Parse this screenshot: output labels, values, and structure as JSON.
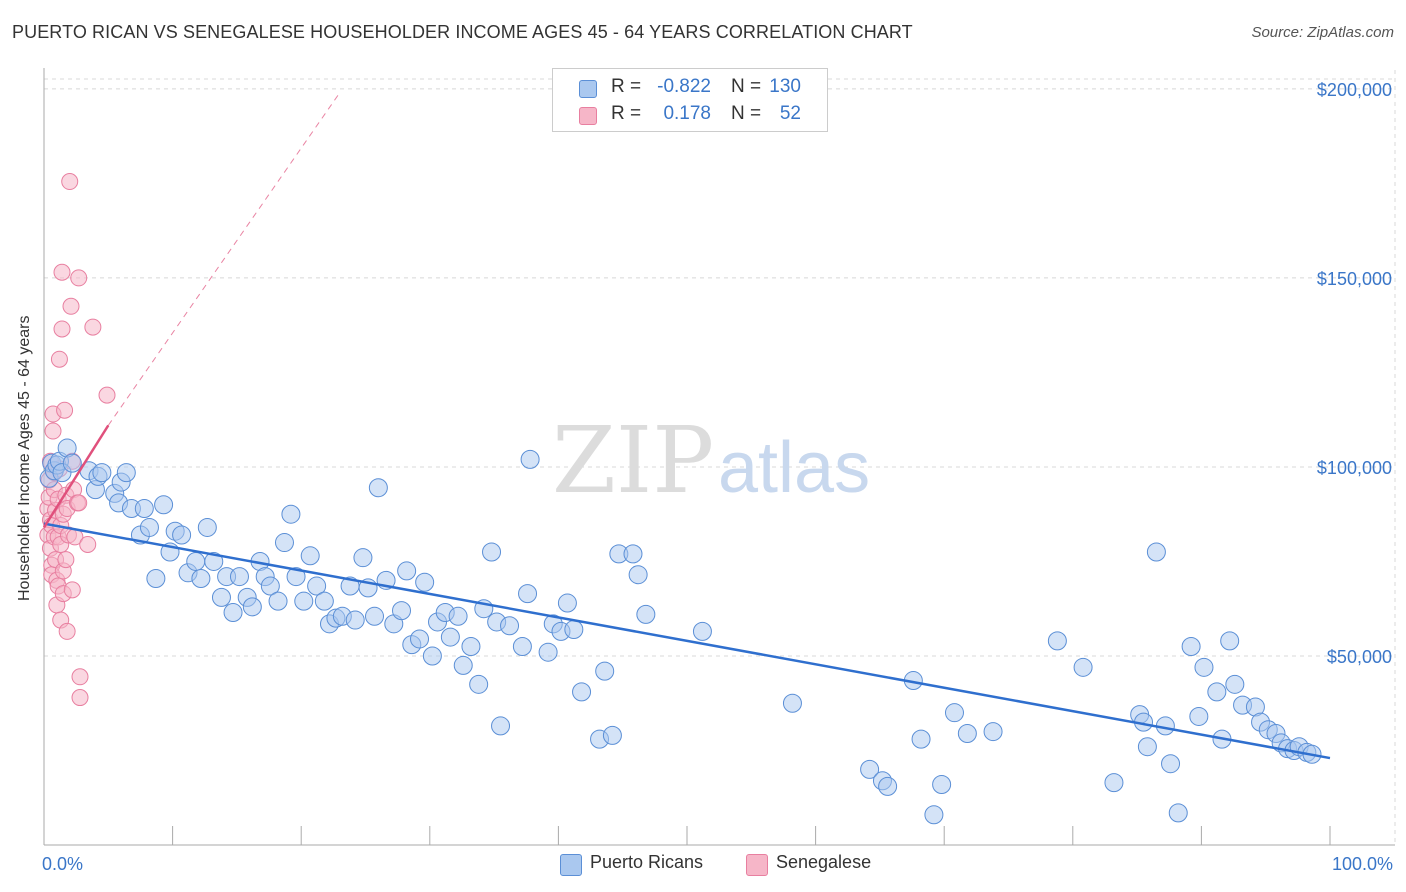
{
  "header": {
    "title": "PUERTO RICAN VS SENEGALESE HOUSEHOLDER INCOME AGES 45 - 64 YEARS CORRELATION CHART",
    "source": "Source: ZipAtlas.com"
  },
  "legend": {
    "rows": [
      {
        "r_label": "R =",
        "r_value": "-0.822",
        "n_label": "N =",
        "n_value": "130"
      },
      {
        "r_label": "R =",
        "r_value": "0.178",
        "n_label": "N =",
        "n_value": "52"
      }
    ]
  },
  "bottom_legend": [
    "Puerto Ricans",
    "Senegalese"
  ],
  "colors": {
    "blue_fill": "#aac8ef",
    "blue_stroke": "#5b8fd6",
    "blue_line": "#2f6fce",
    "pink_fill": "#f6b6c8",
    "pink_stroke": "#e87fa0",
    "pink_line": "#e0507c",
    "axis_label": "#3a76c8",
    "grid": "#d8d8d8"
  },
  "chart_data": {
    "type": "scatter",
    "title": "PUERTO RICAN VS SENEGALESE HOUSEHOLDER INCOME AGES 45 - 64 YEARS CORRELATION CHART",
    "xlabel": "",
    "ylabel": "Householder Income Ages 45 - 64 years",
    "xlim": [
      0,
      100
    ],
    "ylim": [
      0,
      205000
    ],
    "x_tick_labels": [
      "0.0%",
      "100.0%"
    ],
    "y_ticks": [
      50000,
      100000,
      150000,
      200000
    ],
    "y_tick_labels": [
      "$50,000",
      "$100,000",
      "$150,000",
      "$200,000"
    ],
    "grid": true,
    "legend_position": "top-center",
    "watermark": "ZIPatlas",
    "series": [
      {
        "name": "Puerto Ricans",
        "r": -0.822,
        "n": 130,
        "trend": {
          "x": [
            0,
            100
          ],
          "y": [
            85000,
            23000
          ]
        },
        "points": [
          [
            0.4,
            97000
          ],
          [
            0.6,
            101000
          ],
          [
            0.8,
            99000
          ],
          [
            1.0,
            100500
          ],
          [
            1.2,
            101500
          ],
          [
            1.4,
            98500
          ],
          [
            1.8,
            105000
          ],
          [
            2.2,
            101000
          ],
          [
            3.5,
            99000
          ],
          [
            4.0,
            94000
          ],
          [
            4.2,
            97500
          ],
          [
            4.5,
            98500
          ],
          [
            5.5,
            93000
          ],
          [
            5.8,
            90500
          ],
          [
            6.0,
            96000
          ],
          [
            6.4,
            98500
          ],
          [
            6.8,
            89000
          ],
          [
            7.5,
            82000
          ],
          [
            7.8,
            89000
          ],
          [
            8.2,
            84000
          ],
          [
            8.7,
            70500
          ],
          [
            9.3,
            90000
          ],
          [
            9.8,
            77500
          ],
          [
            10.2,
            83000
          ],
          [
            10.7,
            82000
          ],
          [
            11.2,
            72000
          ],
          [
            11.8,
            75000
          ],
          [
            12.2,
            70500
          ],
          [
            12.7,
            84000
          ],
          [
            13.2,
            75000
          ],
          [
            13.8,
            65500
          ],
          [
            14.2,
            71000
          ],
          [
            14.7,
            61500
          ],
          [
            15.2,
            71000
          ],
          [
            15.8,
            65500
          ],
          [
            16.2,
            63000
          ],
          [
            16.8,
            75000
          ],
          [
            17.2,
            71000
          ],
          [
            17.6,
            68500
          ],
          [
            18.2,
            64500
          ],
          [
            18.7,
            80000
          ],
          [
            19.2,
            87500
          ],
          [
            19.6,
            71000
          ],
          [
            20.2,
            64500
          ],
          [
            20.7,
            76500
          ],
          [
            21.2,
            68500
          ],
          [
            21.8,
            64500
          ],
          [
            22.2,
            58500
          ],
          [
            22.7,
            60000
          ],
          [
            23.2,
            60500
          ],
          [
            23.8,
            68500
          ],
          [
            24.2,
            59500
          ],
          [
            24.8,
            76000
          ],
          [
            25.2,
            68000
          ],
          [
            25.7,
            60500
          ],
          [
            26.0,
            94500
          ],
          [
            26.6,
            70000
          ],
          [
            27.2,
            58500
          ],
          [
            27.8,
            62000
          ],
          [
            28.2,
            72500
          ],
          [
            28.6,
            53000
          ],
          [
            29.2,
            54500
          ],
          [
            29.6,
            69500
          ],
          [
            30.2,
            50000
          ],
          [
            30.6,
            59000
          ],
          [
            31.2,
            61500
          ],
          [
            31.6,
            55000
          ],
          [
            32.2,
            60500
          ],
          [
            32.6,
            47500
          ],
          [
            33.2,
            52500
          ],
          [
            33.8,
            42500
          ],
          [
            34.2,
            62500
          ],
          [
            34.8,
            77500
          ],
          [
            35.2,
            59000
          ],
          [
            35.5,
            31500
          ],
          [
            36.2,
            58000
          ],
          [
            37.2,
            52500
          ],
          [
            37.6,
            66500
          ],
          [
            37.8,
            102000
          ],
          [
            39.2,
            51000
          ],
          [
            39.6,
            58500
          ],
          [
            40.2,
            56500
          ],
          [
            40.7,
            64000
          ],
          [
            41.2,
            57000
          ],
          [
            41.8,
            40500
          ],
          [
            43.2,
            28000
          ],
          [
            43.6,
            46000
          ],
          [
            44.2,
            29000
          ],
          [
            44.7,
            77000
          ],
          [
            45.8,
            77000
          ],
          [
            46.2,
            71500
          ],
          [
            46.8,
            61000
          ],
          [
            51.2,
            56500
          ],
          [
            58.2,
            37500
          ],
          [
            64.2,
            20000
          ],
          [
            65.2,
            17000
          ],
          [
            65.6,
            15500
          ],
          [
            67.6,
            43500
          ],
          [
            68.2,
            28000
          ],
          [
            69.2,
            8000
          ],
          [
            69.8,
            16000
          ],
          [
            70.8,
            35000
          ],
          [
            71.8,
            29500
          ],
          [
            73.8,
            30000
          ],
          [
            78.8,
            54000
          ],
          [
            80.8,
            47000
          ],
          [
            83.2,
            16500
          ],
          [
            85.2,
            34500
          ],
          [
            85.5,
            32500
          ],
          [
            85.8,
            26000
          ],
          [
            86.5,
            77500
          ],
          [
            87.2,
            31500
          ],
          [
            87.6,
            21500
          ],
          [
            88.2,
            8500
          ],
          [
            89.2,
            52500
          ],
          [
            89.8,
            34000
          ],
          [
            90.2,
            47000
          ],
          [
            91.2,
            40500
          ],
          [
            91.6,
            28000
          ],
          [
            92.2,
            54000
          ],
          [
            92.6,
            42500
          ],
          [
            93.2,
            37000
          ],
          [
            94.2,
            36500
          ],
          [
            94.6,
            32500
          ],
          [
            95.2,
            30500
          ],
          [
            95.8,
            29500
          ],
          [
            96.2,
            27000
          ],
          [
            96.7,
            25500
          ],
          [
            97.2,
            25000
          ],
          [
            97.6,
            26000
          ],
          [
            98.2,
            24500
          ],
          [
            98.6,
            24000
          ]
        ]
      },
      {
        "name": "Senegalese",
        "r": 0.178,
        "n": 52,
        "trend": {
          "x": [
            0,
            5
          ],
          "y": [
            84000,
            111000
          ]
        },
        "trend_extended": {
          "x": [
            5,
            23
          ],
          "y": [
            111000,
            199000
          ]
        },
        "points": [
          [
            0.3,
            82000
          ],
          [
            0.3,
            89000
          ],
          [
            0.4,
            92000
          ],
          [
            0.4,
            96500
          ],
          [
            0.5,
            101500
          ],
          [
            0.5,
            86000
          ],
          [
            0.5,
            78500
          ],
          [
            0.6,
            74000
          ],
          [
            0.6,
            71500
          ],
          [
            0.6,
            84500
          ],
          [
            0.7,
            109500
          ],
          [
            0.7,
            114000
          ],
          [
            0.8,
            98500
          ],
          [
            0.8,
            81500
          ],
          [
            0.8,
            94000
          ],
          [
            0.9,
            88500
          ],
          [
            0.9,
            75500
          ],
          [
            1.0,
            70000
          ],
          [
            1.0,
            63500
          ],
          [
            1.1,
            81500
          ],
          [
            1.1,
            91500
          ],
          [
            1.1,
            68500
          ],
          [
            1.2,
            128500
          ],
          [
            1.2,
            99500
          ],
          [
            1.3,
            84500
          ],
          [
            1.3,
            79500
          ],
          [
            1.3,
            59500
          ],
          [
            1.4,
            136500
          ],
          [
            1.4,
            151500
          ],
          [
            1.5,
            72500
          ],
          [
            1.5,
            66500
          ],
          [
            1.5,
            87500
          ],
          [
            1.6,
            115000
          ],
          [
            1.7,
            92500
          ],
          [
            1.7,
            75500
          ],
          [
            1.8,
            89000
          ],
          [
            1.8,
            56500
          ],
          [
            1.9,
            82000
          ],
          [
            2.0,
            175500
          ],
          [
            2.1,
            142500
          ],
          [
            2.2,
            101500
          ],
          [
            2.2,
            67500
          ],
          [
            2.3,
            94000
          ],
          [
            2.4,
            81500
          ],
          [
            2.6,
            90500
          ],
          [
            2.7,
            150000
          ],
          [
            2.7,
            90500
          ],
          [
            2.8,
            44500
          ],
          [
            2.8,
            39000
          ],
          [
            3.4,
            79500
          ],
          [
            3.8,
            137000
          ],
          [
            4.9,
            119000
          ]
        ]
      }
    ]
  }
}
